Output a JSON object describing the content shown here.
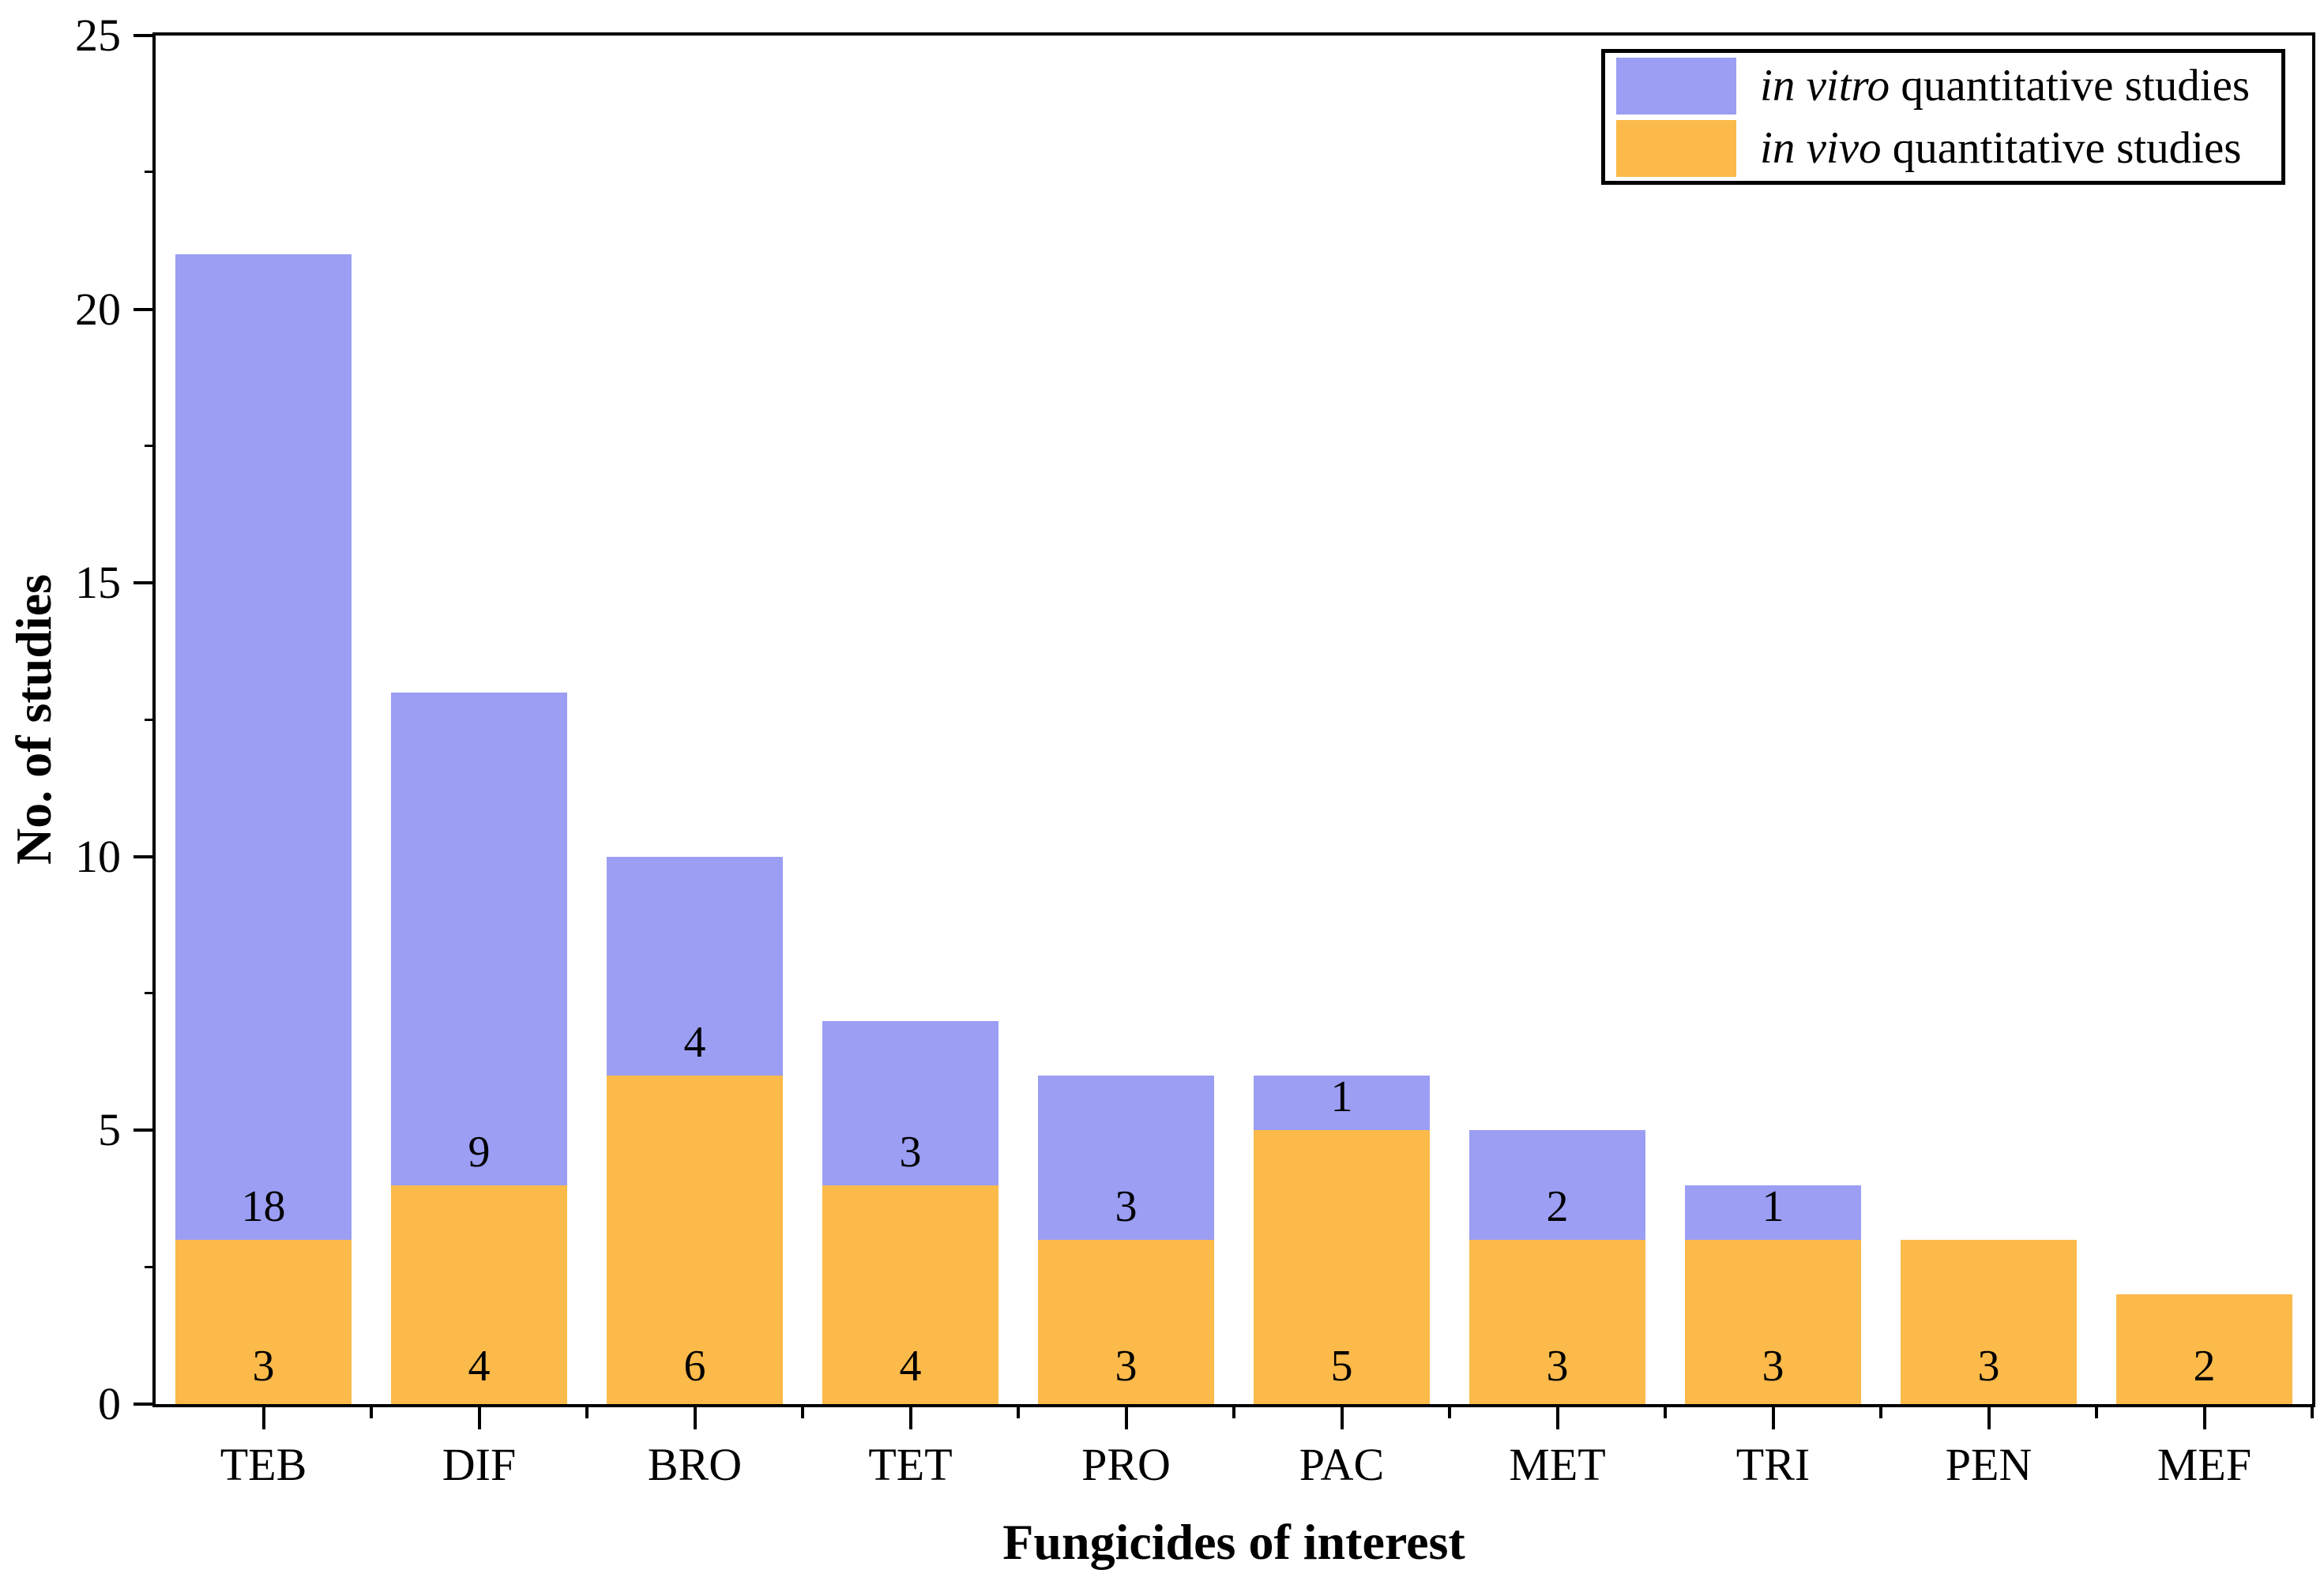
{
  "figure": {
    "background": "#ffffff",
    "axis_color": "#000000"
  },
  "chart_data": {
    "type": "bar",
    "stacked": true,
    "title": "",
    "xlabel": "Fungicides of interest",
    "ylabel": "No. of studies",
    "categories": [
      "TEB",
      "DIF",
      "BRO",
      "TET",
      "PRO",
      "PAC",
      "MET",
      "TRI",
      "PEN",
      "MEF"
    ],
    "series": [
      {
        "name": "in vivo quantitative studies",
        "color": "#FBBA4A",
        "values": [
          3,
          4,
          6,
          4,
          3,
          5,
          3,
          3,
          3,
          2
        ]
      },
      {
        "name": "in vitro quantitative studies",
        "color": "#9B9EF3",
        "values": [
          18,
          9,
          4,
          3,
          3,
          1,
          2,
          1,
          0,
          0
        ]
      }
    ],
    "totals": [
      21,
      13,
      10,
      7,
      6,
      6,
      5,
      4,
      3,
      2
    ],
    "bar_value_labels": true,
    "ylim": [
      0,
      25
    ],
    "yticks": [
      0,
      5,
      10,
      15,
      20,
      25
    ],
    "y_minor_step": 2.5,
    "grid": false,
    "frame": true,
    "legend": {
      "position": "top-right",
      "entries": [
        {
          "italic": "in vitro",
          "rest": " quantitative studies",
          "color": "#9B9EF3"
        },
        {
          "italic": "in vivo",
          "rest": " quantitative studies",
          "color": "#FBBA4A"
        }
      ]
    }
  }
}
